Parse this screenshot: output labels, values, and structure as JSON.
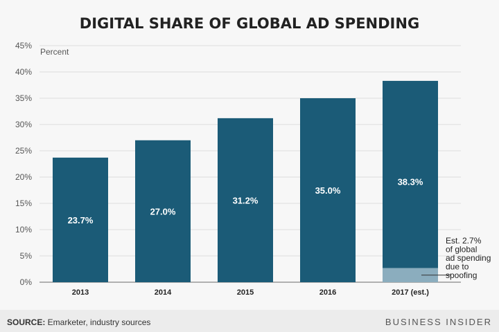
{
  "chart_data": {
    "type": "bar",
    "title": "DIGITAL SHARE OF GLOBAL AD SPENDING",
    "ylabel": "Percent",
    "xlabel": "",
    "ylim": [
      0,
      45
    ],
    "yticks": [
      "0%",
      "5%",
      "10%",
      "15%",
      "20%",
      "25%",
      "30%",
      "35%",
      "40%",
      "45%"
    ],
    "ytick_values": [
      0,
      5,
      10,
      15,
      20,
      25,
      30,
      35,
      40,
      45
    ],
    "grid": true,
    "categories": [
      "2013",
      "2014",
      "2015",
      "2016",
      "2017 (est.)"
    ],
    "values": [
      23.7,
      27.0,
      31.2,
      35.0,
      38.3
    ],
    "value_labels": [
      "23.7%",
      "27.0%",
      "31.2%",
      "35.0%",
      "38.3%"
    ],
    "spoofing_segment": {
      "category": "2017 (est.)",
      "value": 2.7
    },
    "annotation": [
      "Est. 2.7%",
      "of global",
      "ad spending",
      "due to",
      "spoofing"
    ],
    "colors": {
      "bar": "#1b5b77",
      "spoofing": "#8badbe",
      "grid": "#dedede"
    }
  },
  "footer": {
    "source_label": "SOURCE:",
    "source_text": " Emarketer, industry sources",
    "brand": "BUSINESS INSIDER"
  }
}
